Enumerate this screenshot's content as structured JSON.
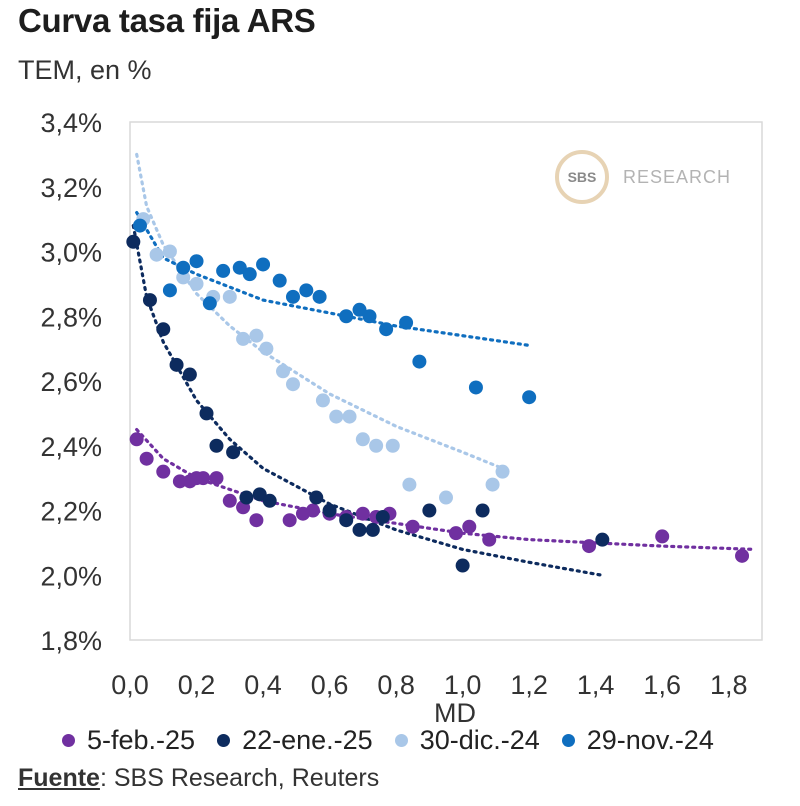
{
  "header": {
    "title": "Curva tasa fija ARS",
    "subtitle": "TEM, en %"
  },
  "watermark": {
    "logo_text": "SBS",
    "text": "RESEARCH"
  },
  "source": {
    "label": "Fuente",
    "text": ": SBS Research, Reuters"
  },
  "chart_data": {
    "type": "scatter",
    "title": "Curva tasa fija ARS",
    "subtitle": "TEM, en %",
    "xlabel": "MD",
    "ylabel": "TEM, en %",
    "xlim": [
      0,
      1.9
    ],
    "ylim": [
      1.8,
      3.4
    ],
    "x_ticks": [
      0.0,
      0.2,
      0.4,
      0.6,
      0.8,
      1.0,
      1.2,
      1.4,
      1.6,
      1.8
    ],
    "x_tick_labels": [
      "0,0",
      "0,2",
      "0,4",
      "0,6",
      "0,8",
      "1,0",
      "1,2",
      "1,4",
      "1,6",
      "1,8"
    ],
    "y_ticks": [
      1.8,
      2.0,
      2.2,
      2.4,
      2.6,
      2.8,
      3.0,
      3.2,
      3.4
    ],
    "y_tick_labels": [
      "1,8%",
      "2,0%",
      "2,2%",
      "2,4%",
      "2,6%",
      "2,8%",
      "3,0%",
      "3,2%",
      "3,4%"
    ],
    "legend_position": "bottom",
    "series": [
      {
        "name": "5-feb.-25",
        "color": "#7030a0",
        "points": [
          [
            0.02,
            2.42
          ],
          [
            0.05,
            2.36
          ],
          [
            0.1,
            2.32
          ],
          [
            0.15,
            2.29
          ],
          [
            0.18,
            2.29
          ],
          [
            0.2,
            2.3
          ],
          [
            0.22,
            2.3
          ],
          [
            0.26,
            2.3
          ],
          [
            0.3,
            2.23
          ],
          [
            0.34,
            2.21
          ],
          [
            0.38,
            2.17
          ],
          [
            0.48,
            2.17
          ],
          [
            0.52,
            2.19
          ],
          [
            0.55,
            2.2
          ],
          [
            0.6,
            2.19
          ],
          [
            0.65,
            2.18
          ],
          [
            0.7,
            2.19
          ],
          [
            0.74,
            2.18
          ],
          [
            0.78,
            2.19
          ],
          [
            0.85,
            2.15
          ],
          [
            0.98,
            2.13
          ],
          [
            1.02,
            2.15
          ],
          [
            1.08,
            2.11
          ],
          [
            1.38,
            2.09
          ],
          [
            1.6,
            2.12
          ],
          [
            1.84,
            2.06
          ]
        ],
        "trend": [
          [
            0.02,
            2.45
          ],
          [
            0.1,
            2.36
          ],
          [
            0.2,
            2.3
          ],
          [
            0.4,
            2.23
          ],
          [
            0.6,
            2.19
          ],
          [
            0.8,
            2.16
          ],
          [
            1.0,
            2.13
          ],
          [
            1.2,
            2.11
          ],
          [
            1.4,
            2.1
          ],
          [
            1.6,
            2.09
          ],
          [
            1.88,
            2.08
          ]
        ]
      },
      {
        "name": "22-ene.-25",
        "color": "#0d2b5e",
        "points": [
          [
            0.01,
            3.03
          ],
          [
            0.06,
            2.85
          ],
          [
            0.1,
            2.76
          ],
          [
            0.14,
            2.65
          ],
          [
            0.18,
            2.62
          ],
          [
            0.23,
            2.5
          ],
          [
            0.26,
            2.4
          ],
          [
            0.31,
            2.38
          ],
          [
            0.35,
            2.24
          ],
          [
            0.39,
            2.25
          ],
          [
            0.42,
            2.23
          ],
          [
            0.56,
            2.24
          ],
          [
            0.6,
            2.2
          ],
          [
            0.65,
            2.17
          ],
          [
            0.69,
            2.14
          ],
          [
            0.73,
            2.14
          ],
          [
            0.76,
            2.18
          ],
          [
            0.9,
            2.2
          ],
          [
            1.0,
            2.03
          ],
          [
            1.06,
            2.2
          ],
          [
            1.42,
            2.11
          ]
        ],
        "trend": [
          [
            0.01,
            3.08
          ],
          [
            0.05,
            2.86
          ],
          [
            0.1,
            2.72
          ],
          [
            0.2,
            2.54
          ],
          [
            0.3,
            2.42
          ],
          [
            0.4,
            2.33
          ],
          [
            0.6,
            2.22
          ],
          [
            0.8,
            2.14
          ],
          [
            1.0,
            2.08
          ],
          [
            1.2,
            2.04
          ],
          [
            1.42,
            2.0
          ]
        ]
      },
      {
        "name": "30-dic.-24",
        "color": "#a9c7e8",
        "points": [
          [
            0.04,
            3.1
          ],
          [
            0.08,
            2.99
          ],
          [
            0.12,
            3.0
          ],
          [
            0.16,
            2.92
          ],
          [
            0.2,
            2.9
          ],
          [
            0.25,
            2.86
          ],
          [
            0.3,
            2.86
          ],
          [
            0.34,
            2.73
          ],
          [
            0.38,
            2.74
          ],
          [
            0.41,
            2.7
          ],
          [
            0.46,
            2.63
          ],
          [
            0.49,
            2.59
          ],
          [
            0.58,
            2.54
          ],
          [
            0.62,
            2.49
          ],
          [
            0.66,
            2.49
          ],
          [
            0.7,
            2.42
          ],
          [
            0.74,
            2.4
          ],
          [
            0.79,
            2.4
          ],
          [
            0.84,
            2.28
          ],
          [
            0.95,
            2.24
          ],
          [
            1.09,
            2.28
          ],
          [
            1.12,
            2.32
          ]
        ],
        "trend": [
          [
            0.02,
            3.3
          ],
          [
            0.05,
            3.14
          ],
          [
            0.1,
            3.02
          ],
          [
            0.2,
            2.87
          ],
          [
            0.3,
            2.77
          ],
          [
            0.4,
            2.69
          ],
          [
            0.6,
            2.56
          ],
          [
            0.8,
            2.46
          ],
          [
            1.0,
            2.38
          ],
          [
            1.12,
            2.33
          ]
        ]
      },
      {
        "name": "29-nov.-24",
        "color": "#0f6ebf",
        "points": [
          [
            0.03,
            3.08
          ],
          [
            0.12,
            2.88
          ],
          [
            0.16,
            2.95
          ],
          [
            0.2,
            2.97
          ],
          [
            0.24,
            2.84
          ],
          [
            0.28,
            2.94
          ],
          [
            0.33,
            2.95
          ],
          [
            0.36,
            2.93
          ],
          [
            0.4,
            2.96
          ],
          [
            0.45,
            2.91
          ],
          [
            0.49,
            2.86
          ],
          [
            0.53,
            2.88
          ],
          [
            0.57,
            2.86
          ],
          [
            0.65,
            2.8
          ],
          [
            0.69,
            2.82
          ],
          [
            0.72,
            2.8
          ],
          [
            0.77,
            2.76
          ],
          [
            0.83,
            2.78
          ],
          [
            0.87,
            2.66
          ],
          [
            1.04,
            2.58
          ],
          [
            1.2,
            2.55
          ]
        ],
        "trend": [
          [
            0.02,
            3.12
          ],
          [
            0.1,
            2.98
          ],
          [
            0.2,
            2.93
          ],
          [
            0.3,
            2.89
          ],
          [
            0.4,
            2.85
          ],
          [
            0.6,
            2.81
          ],
          [
            0.8,
            2.77
          ],
          [
            1.0,
            2.74
          ],
          [
            1.2,
            2.71
          ]
        ]
      }
    ]
  }
}
